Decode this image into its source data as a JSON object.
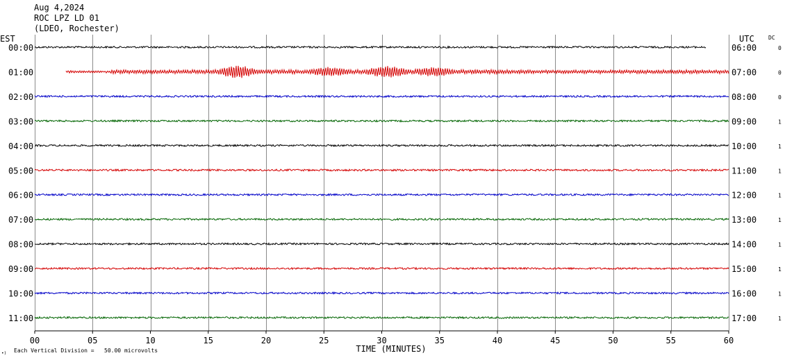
{
  "header": {
    "date": "Aug 4,2024",
    "station": "ROC LPZ LD 01",
    "network": "(LDEO, Rochester)"
  },
  "labels": {
    "left_timezone": "EST",
    "right_timezone": "UTC",
    "dc_label": "DC",
    "footer_scale": "Each Vertical Division =   50.00 microvolts",
    "footer_mark": "•)"
  },
  "colors": {
    "trace_cycle": [
      "#000000",
      "#d40000",
      "#0000c8",
      "#006400"
    ],
    "grid": "#8a8a8a"
  },
  "chart_data": {
    "type": "line",
    "title": "",
    "xlabel": "TIME (MINUTES)",
    "ylabel": "",
    "xlim": [
      0,
      60
    ],
    "x_ticks": [
      "00",
      "05",
      "10",
      "15",
      "20",
      "25",
      "30",
      "35",
      "40",
      "45",
      "50",
      "55",
      "60"
    ],
    "rows": [
      {
        "left": "00:00",
        "right": "06:00",
        "dc": "0",
        "start_min": 0.0,
        "end_min": 58.0,
        "event": null
      },
      {
        "left": "01:00",
        "right": "07:00",
        "dc": "0",
        "start_min": 2.7,
        "end_min": 60.0,
        "event": {
          "start_min": 14.5,
          "end_min": 41.0,
          "peaks_min": [
            17.5,
            25.5,
            30.5,
            34.5
          ]
        }
      },
      {
        "left": "02:00",
        "right": "08:00",
        "dc": "0",
        "start_min": 0.0,
        "end_min": 60.0,
        "event": null
      },
      {
        "left": "03:00",
        "right": "09:00",
        "dc": "1",
        "start_min": 0.0,
        "end_min": 60.0,
        "event": null
      },
      {
        "left": "04:00",
        "right": "10:00",
        "dc": "1",
        "start_min": 0.0,
        "end_min": 60.0,
        "event": null
      },
      {
        "left": "05:00",
        "right": "11:00",
        "dc": "1",
        "start_min": 0.0,
        "end_min": 60.0,
        "event": null
      },
      {
        "left": "06:00",
        "right": "12:00",
        "dc": "1",
        "start_min": 0.0,
        "end_min": 60.0,
        "event": null
      },
      {
        "left": "07:00",
        "right": "13:00",
        "dc": "1",
        "start_min": 0.0,
        "end_min": 60.0,
        "event": null
      },
      {
        "left": "08:00",
        "right": "14:00",
        "dc": "1",
        "start_min": 0.0,
        "end_min": 60.0,
        "event": null
      },
      {
        "left": "09:00",
        "right": "15:00",
        "dc": "1",
        "start_min": 0.0,
        "end_min": 60.0,
        "event": null
      },
      {
        "left": "10:00",
        "right": "16:00",
        "dc": "1",
        "start_min": 0.0,
        "end_min": 60.0,
        "event": null
      },
      {
        "left": "11:00",
        "right": "17:00",
        "dc": "1",
        "start_min": 0.0,
        "end_min": 60.0,
        "event": null
      }
    ]
  }
}
